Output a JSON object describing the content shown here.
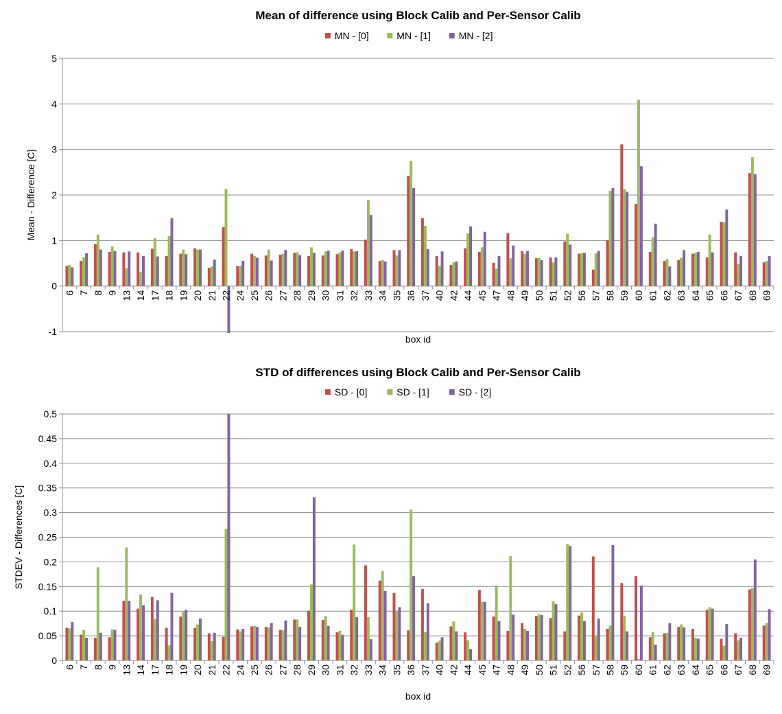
{
  "chart_data": [
    {
      "type": "bar",
      "title": "Mean of difference using Block Calib and Per-Sensor Calib",
      "xlabel": "box id",
      "ylabel": "Mean - Difference [C]",
      "ylim": [
        -1,
        5
      ],
      "yticks": [
        "-1",
        "0",
        "1",
        "2",
        "3",
        "4",
        "5"
      ],
      "grid": true,
      "legend_position": "top",
      "categories": [
        "6",
        "7",
        "8",
        "9",
        "13",
        "14",
        "17",
        "18",
        "19",
        "20",
        "21",
        "22",
        "24",
        "25",
        "26",
        "27",
        "28",
        "29",
        "30",
        "31",
        "32",
        "33",
        "34",
        "35",
        "36",
        "37",
        "40",
        "42",
        "44",
        "45",
        "47",
        "48",
        "49",
        "50",
        "51",
        "52",
        "56",
        "57",
        "58",
        "59",
        "60",
        "61",
        "62",
        "63",
        "64",
        "65",
        "66",
        "67",
        "68",
        "69"
      ],
      "series": [
        {
          "name": "MN - [0]",
          "color": "#c0504d",
          "values": [
            0.44,
            0.55,
            0.92,
            0.75,
            0.74,
            0.74,
            0.82,
            0.66,
            0.71,
            0.83,
            0.4,
            1.29,
            0.44,
            0.71,
            0.67,
            0.69,
            0.73,
            0.66,
            0.67,
            0.7,
            0.81,
            1.02,
            0.55,
            0.79,
            2.42,
            1.49,
            0.66,
            0.46,
            0.83,
            0.75,
            0.51,
            1.16,
            0.77,
            0.61,
            0.63,
            0.98,
            0.71,
            0.36,
            1.01,
            3.11,
            1.8,
            0.75,
            0.55,
            0.57,
            0.71,
            0.63,
            1.41,
            0.74,
            2.48,
            0.52
          ]
        },
        {
          "name": "MN - [1]",
          "color": "#9bbb59",
          "values": [
            0.46,
            0.63,
            1.13,
            0.87,
            0.39,
            0.31,
            1.05,
            1.1,
            0.8,
            0.8,
            0.43,
            2.13,
            0.44,
            0.66,
            0.8,
            0.71,
            0.74,
            0.85,
            0.76,
            0.74,
            0.76,
            1.89,
            0.57,
            0.67,
            2.75,
            1.32,
            0.44,
            0.52,
            1.16,
            0.85,
            0.38,
            0.61,
            0.71,
            0.62,
            0.52,
            1.15,
            0.72,
            0.72,
            2.09,
            2.13,
            4.09,
            1.07,
            0.59,
            0.62,
            0.73,
            1.13,
            1.4,
            0.48,
            2.83,
            0.55
          ]
        },
        {
          "name": "MN - [2]",
          "color": "#8064a2",
          "values": [
            0.41,
            0.72,
            0.8,
            0.77,
            0.76,
            0.66,
            0.65,
            1.49,
            0.7,
            0.8,
            0.58,
            -1.03,
            0.55,
            0.62,
            0.56,
            0.79,
            0.68,
            0.73,
            0.78,
            0.78,
            0.77,
            1.56,
            0.54,
            0.79,
            2.15,
            0.81,
            0.76,
            0.54,
            1.31,
            1.19,
            0.66,
            0.89,
            0.77,
            0.57,
            0.63,
            0.91,
            0.73,
            0.77,
            2.15,
            2.07,
            2.63,
            1.37,
            0.43,
            0.79,
            0.75,
            0.74,
            1.68,
            0.66,
            2.46,
            0.66
          ]
        }
      ]
    },
    {
      "type": "bar",
      "title": "STD of differences using Block Calib and Per-Sensor Calib",
      "xlabel": "box id",
      "ylabel": "STDEV - Differences [C]",
      "ylim": [
        0,
        0.5
      ],
      "yticks": [
        "0",
        "0.05",
        "0.1",
        "0.15",
        "0.2",
        "0.25",
        "0.3",
        "0.35",
        "0.4",
        "0.45",
        "0.5"
      ],
      "grid": true,
      "legend_position": "top",
      "categories": [
        "6",
        "7",
        "8",
        "9",
        "13",
        "14",
        "17",
        "18",
        "19",
        "20",
        "21",
        "22",
        "24",
        "25",
        "26",
        "27",
        "28",
        "29",
        "30",
        "31",
        "32",
        "33",
        "34",
        "35",
        "36",
        "37",
        "40",
        "42",
        "44",
        "45",
        "47",
        "48",
        "49",
        "50",
        "51",
        "52",
        "56",
        "57",
        "58",
        "59",
        "60",
        "61",
        "62",
        "63",
        "64",
        "65",
        "66",
        "67",
        "68",
        "69"
      ],
      "series": [
        {
          "name": "SD - [0]",
          "color": "#c0504d",
          "values": [
            0.066,
            0.052,
            0.046,
            0.047,
            0.121,
            0.105,
            0.129,
            0.066,
            0.089,
            0.066,
            0.055,
            0.048,
            0.063,
            0.069,
            0.068,
            0.062,
            0.083,
            0.101,
            0.082,
            0.057,
            0.103,
            0.193,
            0.162,
            0.137,
            0.061,
            0.145,
            0.036,
            0.069,
            0.057,
            0.143,
            0.089,
            0.06,
            0.076,
            0.09,
            0.086,
            0.059,
            0.091,
            0.211,
            0.064,
            0.157,
            0.171,
            0.047,
            0.055,
            0.068,
            0.064,
            0.103,
            0.044,
            0.055,
            0.144,
            0.071
          ]
        },
        {
          "name": "SD - [1]",
          "color": "#9bbb59",
          "values": [
            0.065,
            0.062,
            0.189,
            0.063,
            0.229,
            0.134,
            0.084,
            0.031,
            0.099,
            0.073,
            0.039,
            0.267,
            0.059,
            0.07,
            0.067,
            0.061,
            0.083,
            0.154,
            0.09,
            0.06,
            0.235,
            0.088,
            0.181,
            0.101,
            0.306,
            0.058,
            0.04,
            0.079,
            0.041,
            0.119,
            0.152,
            0.212,
            0.064,
            0.094,
            0.12,
            0.236,
            0.097,
            0.05,
            0.071,
            0.09,
            0.003,
            0.058,
            0.056,
            0.073,
            0.046,
            0.108,
            0.03,
            0.041,
            0.147,
            0.076
          ]
        },
        {
          "name": "SD - [2]",
          "color": "#8064a2",
          "values": [
            0.078,
            0.046,
            0.056,
            0.062,
            0.121,
            0.112,
            0.122,
            0.137,
            0.103,
            0.085,
            0.056,
            0.5,
            0.064,
            0.068,
            0.076,
            0.081,
            0.068,
            0.331,
            0.07,
            0.052,
            0.088,
            0.043,
            0.141,
            0.108,
            0.171,
            0.116,
            0.047,
            0.059,
            0.023,
            0.119,
            0.08,
            0.093,
            0.06,
            0.092,
            0.114,
            0.232,
            0.08,
            0.085,
            0.234,
            0.059,
            0.152,
            0.032,
            0.076,
            0.067,
            0.044,
            0.105,
            0.074,
            0.046,
            0.205,
            0.104
          ]
        }
      ]
    }
  ]
}
